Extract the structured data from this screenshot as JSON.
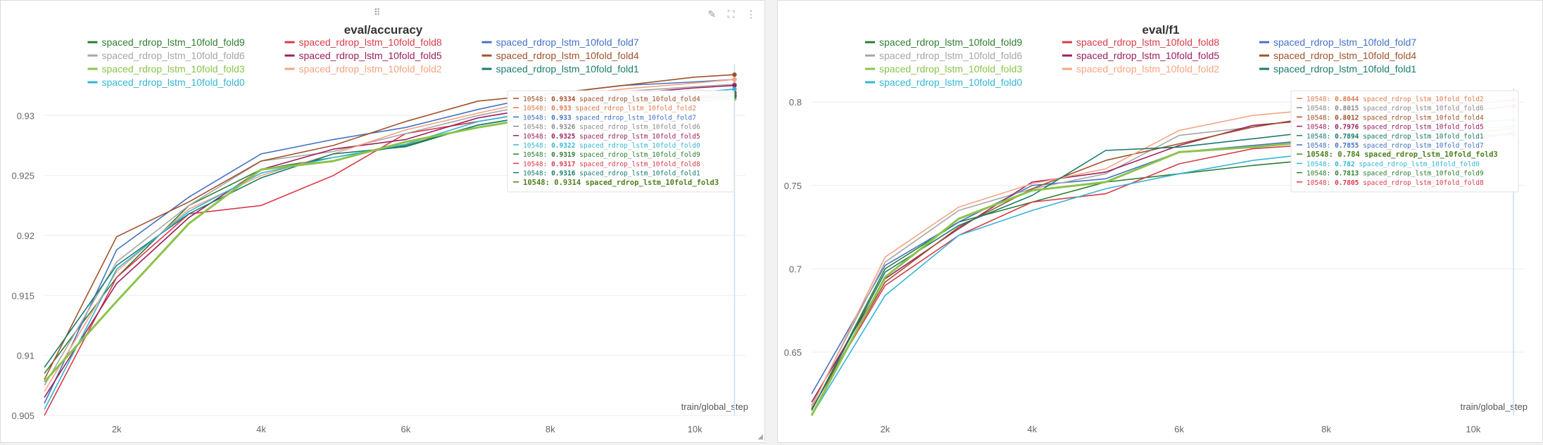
{
  "panels": [
    {
      "title": "eval/accuracy",
      "xlabel": "train/global_step",
      "show_tools": true
    },
    {
      "title": "eval/f1",
      "xlabel": "train/global_step",
      "show_tools": false
    }
  ],
  "tools": {
    "drag": "⠿",
    "edit": "✎",
    "fullscreen": "⛶",
    "menu": "⋮"
  },
  "chart_data": [
    {
      "type": "line",
      "title": "eval/accuracy",
      "xlabel": "train/global_step",
      "ylabel": "",
      "xlim": [
        1000,
        10700
      ],
      "ylim": [
        0.905,
        0.934
      ],
      "x_ticks": [
        2000,
        4000,
        6000,
        8000,
        10000
      ],
      "x_tick_labels": [
        "2k",
        "4k",
        "6k",
        "8k",
        "10k"
      ],
      "y_ticks": [
        0.905,
        0.91,
        0.915,
        0.92,
        0.925,
        0.93
      ],
      "y_tick_labels": [
        "0.905",
        "0.91",
        "0.915",
        "0.92",
        "0.925",
        "0.93"
      ],
      "tooltip_step": "10548",
      "x": [
        1000,
        2000,
        3000,
        4000,
        5000,
        6000,
        7000,
        8000,
        9000,
        10000,
        10548
      ],
      "series": [
        {
          "name": "spaced_rdrop_lstm_10fold_fold9",
          "color": "#2e7d32",
          "values": [
            0.9085,
            0.9165,
            0.9225,
            0.9255,
            0.9265,
            0.9275,
            0.9292,
            0.9302,
            0.931,
            0.9316,
            0.9319
          ]
        },
        {
          "name": "spaced_rdrop_lstm_10fold_fold8",
          "color": "#d93a4a",
          "values": [
            0.905,
            0.9165,
            0.9218,
            0.9225,
            0.925,
            0.9285,
            0.9295,
            0.9305,
            0.9311,
            0.9315,
            0.9317
          ]
        },
        {
          "name": "spaced_rdrop_lstm_10fold_fold7",
          "color": "#4472c4",
          "values": [
            0.906,
            0.9188,
            0.9232,
            0.9268,
            0.928,
            0.929,
            0.9305,
            0.9318,
            0.9325,
            0.9328,
            0.933
          ]
        },
        {
          "name": "spaced_rdrop_lstm_10fold_fold6",
          "color": "#a6a6a6",
          "values": [
            0.9075,
            0.9178,
            0.9225,
            0.9262,
            0.927,
            0.9285,
            0.93,
            0.9312,
            0.932,
            0.9324,
            0.9326
          ]
        },
        {
          "name": "spaced_rdrop_lstm_10fold_fold5",
          "color": "#9c1f5c",
          "values": [
            0.9065,
            0.916,
            0.9215,
            0.9255,
            0.9272,
            0.928,
            0.9298,
            0.9308,
            0.9318,
            0.9323,
            0.9325
          ]
        },
        {
          "name": "spaced_rdrop_lstm_10fold_fold4",
          "color": "#a0522d",
          "values": [
            0.908,
            0.9199,
            0.9228,
            0.9262,
            0.9275,
            0.9295,
            0.9312,
            0.9318,
            0.9325,
            0.9332,
            0.9334
          ]
        },
        {
          "name": "spaced_rdrop_lstm_10fold_fold3",
          "color": "#8bc34a",
          "values": [
            0.9078,
            0.9145,
            0.921,
            0.9255,
            0.9262,
            0.9278,
            0.929,
            0.93,
            0.9307,
            0.9312,
            0.9314
          ]
        },
        {
          "name": "spaced_rdrop_lstm_10fold_fold2",
          "color": "#f4a582",
          "values": [
            0.907,
            0.917,
            0.9222,
            0.925,
            0.9268,
            0.9288,
            0.9302,
            0.9315,
            0.9322,
            0.9327,
            0.933
          ]
        },
        {
          "name": "spaced_rdrop_lstm_10fold_fold1",
          "color": "#1b7a6e",
          "values": [
            0.909,
            0.9175,
            0.9218,
            0.9248,
            0.9268,
            0.9274,
            0.9292,
            0.9302,
            0.931,
            0.9314,
            0.9316
          ]
        },
        {
          "name": "spaced_rdrop_lstm_10fold_fold0",
          "color": "#33b5d6",
          "values": [
            0.9055,
            0.9172,
            0.922,
            0.9252,
            0.9265,
            0.9276,
            0.9295,
            0.9305,
            0.9314,
            0.9319,
            0.9322
          ]
        }
      ],
      "tooltip": [
        {
          "value": "0.9334",
          "name": "spaced_rdrop_lstm_10fold_fold4",
          "color": "#a0522d",
          "highlight": false
        },
        {
          "value": "0.933",
          "name": "spaced_rdrop_lstm_10fold_fold2",
          "color": "#e07b4f",
          "highlight": false
        },
        {
          "value": "0.933",
          "name": "spaced_rdrop_lstm_10fold_fold7",
          "color": "#4472c4",
          "highlight": false
        },
        {
          "value": "0.9326",
          "name": "spaced_rdrop_lstm_10fold_fold6",
          "color": "#8a8a8a",
          "highlight": false
        },
        {
          "value": "0.9325",
          "name": "spaced_rdrop_lstm_10fold_fold5",
          "color": "#9c1f5c",
          "highlight": false
        },
        {
          "value": "0.9322",
          "name": "spaced_rdrop_lstm_10fold_fold0",
          "color": "#33b5d6",
          "highlight": false
        },
        {
          "value": "0.9319",
          "name": "spaced_rdrop_lstm_10fold_fold9",
          "color": "#2e7d32",
          "highlight": false
        },
        {
          "value": "0.9317",
          "name": "spaced_rdrop_lstm_10fold_fold8",
          "color": "#d93a4a",
          "highlight": false
        },
        {
          "value": "0.9316",
          "name": "spaced_rdrop_lstm_10fold_fold1",
          "color": "#1b7a6e",
          "highlight": false
        },
        {
          "value": "0.9314",
          "name": "spaced_rdrop_lstm_10fold_fold3",
          "color": "#4f7f1f",
          "highlight": true
        }
      ]
    },
    {
      "type": "line",
      "title": "eval/f1",
      "xlabel": "train/global_step",
      "ylabel": "",
      "xlim": [
        1000,
        10700
      ],
      "ylim": [
        0.612,
        0.806
      ],
      "x_ticks": [
        2000,
        4000,
        6000,
        8000,
        10000
      ],
      "x_tick_labels": [
        "2k",
        "4k",
        "6k",
        "8k",
        "10k"
      ],
      "y_ticks": [
        0.65,
        0.7,
        0.75,
        0.8
      ],
      "y_tick_labels": [
        "0.65",
        "0.7",
        "0.75",
        "0.8"
      ],
      "tooltip_step": "10548",
      "x": [
        1000,
        2000,
        3000,
        4000,
        5000,
        6000,
        7000,
        8000,
        9000,
        10000,
        10548
      ],
      "series": [
        {
          "name": "spaced_rdrop_lstm_10fold_fold9",
          "color": "#2e7d32",
          "values": [
            0.615,
            0.7,
            0.728,
            0.74,
            0.752,
            0.757,
            0.762,
            0.766,
            0.772,
            0.778,
            0.7813
          ]
        },
        {
          "name": "spaced_rdrop_lstm_10fold_fold8",
          "color": "#d93a4a",
          "values": [
            0.616,
            0.69,
            0.72,
            0.74,
            0.745,
            0.763,
            0.772,
            0.775,
            0.778,
            0.78,
            0.7805
          ]
        },
        {
          "name": "spaced_rdrop_lstm_10fold_fold7",
          "color": "#4472c4",
          "values": [
            0.625,
            0.702,
            0.728,
            0.75,
            0.754,
            0.77,
            0.774,
            0.778,
            0.781,
            0.784,
            0.7855
          ]
        },
        {
          "name": "spaced_rdrop_lstm_10fold_fold6",
          "color": "#a6a6a6",
          "values": [
            0.618,
            0.704,
            0.735,
            0.748,
            0.757,
            0.78,
            0.785,
            0.792,
            0.796,
            0.799,
            0.8015
          ]
        },
        {
          "name": "spaced_rdrop_lstm_10fold_fold5",
          "color": "#9c1f5c",
          "values": [
            0.62,
            0.694,
            0.724,
            0.752,
            0.758,
            0.774,
            0.786,
            0.79,
            0.793,
            0.795,
            0.7976
          ]
        },
        {
          "name": "spaced_rdrop_lstm_10fold_fold4",
          "color": "#a0522d",
          "values": [
            0.616,
            0.692,
            0.725,
            0.748,
            0.765,
            0.775,
            0.785,
            0.792,
            0.796,
            0.799,
            0.8012
          ]
        },
        {
          "name": "spaced_rdrop_lstm_10fold_fold3",
          "color": "#8bc34a",
          "values": [
            0.612,
            0.695,
            0.73,
            0.747,
            0.752,
            0.77,
            0.773,
            0.777,
            0.78,
            0.782,
            0.784
          ]
        },
        {
          "name": "spaced_rdrop_lstm_10fold_fold2",
          "color": "#f4a582",
          "values": [
            0.617,
            0.707,
            0.737,
            0.751,
            0.76,
            0.783,
            0.792,
            0.796,
            0.8,
            0.803,
            0.8044
          ]
        },
        {
          "name": "spaced_rdrop_lstm_10fold_fold1",
          "color": "#1b7a6e",
          "values": [
            0.615,
            0.698,
            0.726,
            0.744,
            0.771,
            0.773,
            0.778,
            0.783,
            0.786,
            0.788,
            0.7894
          ]
        },
        {
          "name": "spaced_rdrop_lstm_10fold_fold0",
          "color": "#33b5d6",
          "values": [
            0.612,
            0.684,
            0.72,
            0.735,
            0.748,
            0.757,
            0.765,
            0.77,
            0.774,
            0.778,
            0.782
          ]
        }
      ],
      "tooltip": [
        {
          "value": "0.8044",
          "name": "spaced_rdrop_lstm_10fold_fold2",
          "color": "#e07b4f",
          "highlight": false
        },
        {
          "value": "0.8015",
          "name": "spaced_rdrop_lstm_10fold_fold6",
          "color": "#8a8a8a",
          "highlight": false
        },
        {
          "value": "0.8012",
          "name": "spaced_rdrop_lstm_10fold_fold4",
          "color": "#a0522d",
          "highlight": false
        },
        {
          "value": "0.7976",
          "name": "spaced_rdrop_lstm_10fold_fold5",
          "color": "#9c1f5c",
          "highlight": false
        },
        {
          "value": "0.7894",
          "name": "spaced_rdrop_lstm_10fold_fold1",
          "color": "#1b7a6e",
          "highlight": false
        },
        {
          "value": "0.7855",
          "name": "spaced_rdrop_lstm_10fold_fold7",
          "color": "#4472c4",
          "highlight": false
        },
        {
          "value": "0.784",
          "name": "spaced_rdrop_lstm_10fold_fold3",
          "color": "#4f7f1f",
          "highlight": true
        },
        {
          "value": "0.782",
          "name": "spaced_rdrop_lstm_10fold_fold0",
          "color": "#33b5d6",
          "highlight": false
        },
        {
          "value": "0.7813",
          "name": "spaced_rdrop_lstm_10fold_fold9",
          "color": "#2e7d32",
          "highlight": false
        },
        {
          "value": "0.7805",
          "name": "spaced_rdrop_lstm_10fold_fold8",
          "color": "#d93a4a",
          "highlight": false
        }
      ]
    }
  ]
}
